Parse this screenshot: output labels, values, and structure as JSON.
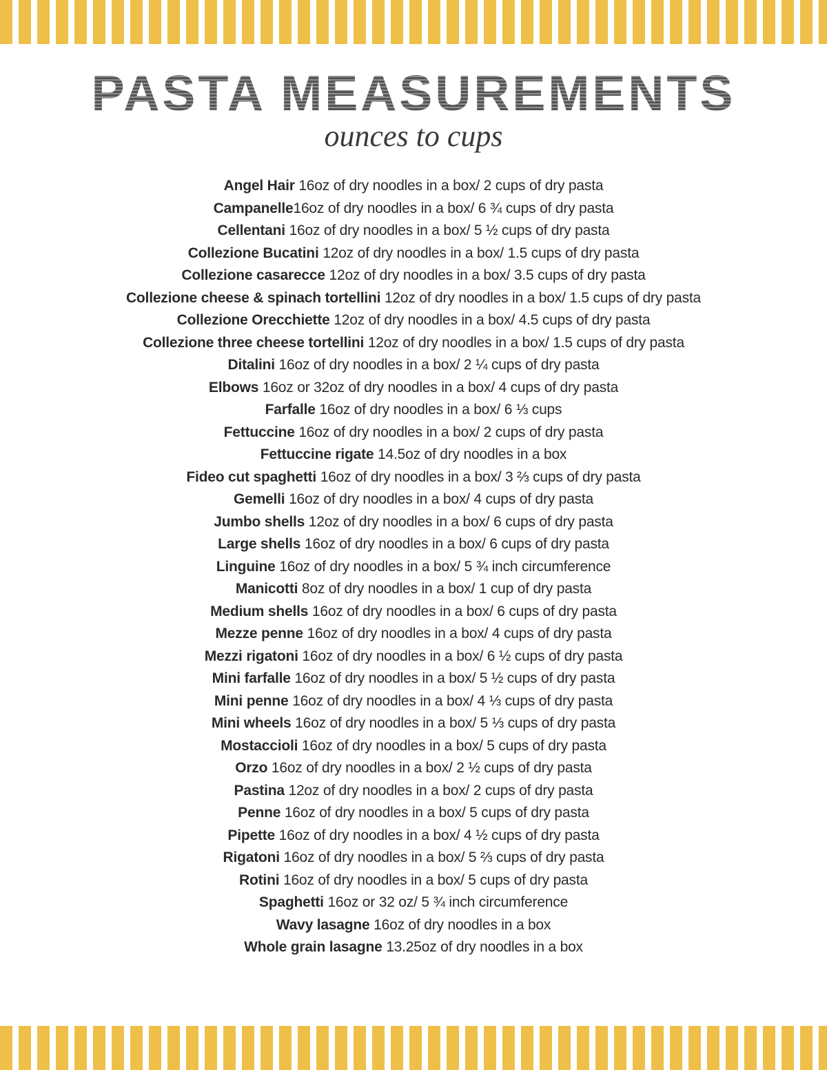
{
  "title": "PASTA MEASUREMENTS",
  "subtitle": "ounces to cups",
  "stripe_color": "#eec04a",
  "background_color": "#ffffff",
  "title_color": "#555555",
  "text_color": "#2a2a2a",
  "title_fontsize": 72,
  "subtitle_fontsize": 44,
  "row_fontsize": 21,
  "row_lineheight": 32.5,
  "items": [
    {
      "name": "Angel Hair ",
      "desc": "16oz of dry noodles in a box/ 2 cups of dry pasta"
    },
    {
      "name": "Campanelle",
      "desc": "16oz of dry noodles in a box/ 6 ¾ cups of dry pasta"
    },
    {
      "name": "Cellentani ",
      "desc": "16oz of dry noodles in a box/ 5 ½ cups of dry pasta"
    },
    {
      "name": "Collezione Bucatini ",
      "desc": "12oz of dry noodles in a box/ 1.5 cups of dry pasta"
    },
    {
      "name": "Collezione casarecce ",
      "desc": "12oz of dry noodles in a box/ 3.5 cups of dry pasta"
    },
    {
      "name": "Collezione cheese & spinach tortellini ",
      "desc": "12oz of dry noodles in a box/ 1.5 cups of dry pasta"
    },
    {
      "name": "Collezione Orecchiette ",
      "desc": "12oz of dry noodles in a box/ 4.5 cups of dry pasta"
    },
    {
      "name": "Collezione three cheese tortellini ",
      "desc": "12oz of dry noodles in a box/ 1.5 cups of dry pasta"
    },
    {
      "name": "Ditalini ",
      "desc": "16oz of dry noodles in a box/ 2 ¼ cups of dry pasta"
    },
    {
      "name": "Elbows ",
      "desc": "16oz or 32oz of dry noodles in a box/ 4 cups of dry pasta"
    },
    {
      "name": "Farfalle ",
      "desc": "16oz of dry noodles in a box/ 6 ⅓ cups"
    },
    {
      "name": "Fettuccine ",
      "desc": "16oz of dry noodles in a box/ 2 cups of dry pasta"
    },
    {
      "name": "Fettuccine rigate ",
      "desc": "14.5oz of dry noodles in a box"
    },
    {
      "name": "Fideo cut spaghetti ",
      "desc": "16oz of dry noodles in a box/ 3 ⅔ cups of dry pasta"
    },
    {
      "name": "Gemelli ",
      "desc": "16oz of dry noodles in a box/ 4 cups of dry pasta"
    },
    {
      "name": "Jumbo shells ",
      "desc": "12oz of dry noodles in a box/ 6 cups of dry pasta"
    },
    {
      "name": "Large shells ",
      "desc": "16oz of dry noodles in a box/ 6 cups of dry pasta"
    },
    {
      "name": "Linguine ",
      "desc": "16oz of dry noodles in a box/ 5 ¾ inch circumference"
    },
    {
      "name": "Manicotti ",
      "desc": "8oz of dry noodles in a box/ 1 cup of dry pasta"
    },
    {
      "name": "Medium shells ",
      "desc": "16oz of dry noodles in a box/ 6 cups of dry pasta"
    },
    {
      "name": "Mezze penne ",
      "desc": "16oz of dry noodles in a box/ 4 cups of dry pasta"
    },
    {
      "name": "Mezzi rigatoni ",
      "desc": "16oz of dry noodles in a box/ 6 ½ cups of dry pasta"
    },
    {
      "name": "Mini farfalle ",
      "desc": "16oz of dry noodles in a box/ 5 ½ cups of dry pasta"
    },
    {
      "name": "Mini penne ",
      "desc": "16oz of dry noodles in a box/ 4 ⅓ cups of dry pasta"
    },
    {
      "name": "Mini wheels ",
      "desc": "16oz of dry noodles in a box/ 5 ⅓ cups of dry pasta"
    },
    {
      "name": "Mostaccioli ",
      "desc": "16oz of dry noodles in a box/ 5 cups of dry pasta"
    },
    {
      "name": "Orzo ",
      "desc": "16oz of dry noodles in a box/ 2 ½ cups of dry pasta"
    },
    {
      "name": "Pastina ",
      "desc": "12oz of dry noodles in a box/ 2 cups of dry pasta"
    },
    {
      "name": "Penne ",
      "desc": "16oz of dry noodles in a box/ 5 cups of dry pasta"
    },
    {
      "name": "Pipette ",
      "desc": "16oz of dry noodles in a box/ 4 ½ cups of dry pasta"
    },
    {
      "name": "Rigatoni ",
      "desc": "16oz of dry noodles in a box/ 5  ⅔ cups of dry pasta"
    },
    {
      "name": "Rotini ",
      "desc": "16oz of dry noodles in a box/ 5 cups of dry pasta"
    },
    {
      "name": "Spaghetti ",
      "desc": "16oz or 32 oz/ 5 ¾ inch circumference"
    },
    {
      "name": "Wavy lasagne ",
      "desc": "16oz of dry noodles in a box"
    },
    {
      "name": "Whole grain lasagne ",
      "desc": "13.25oz of dry noodles in a box"
    }
  ]
}
